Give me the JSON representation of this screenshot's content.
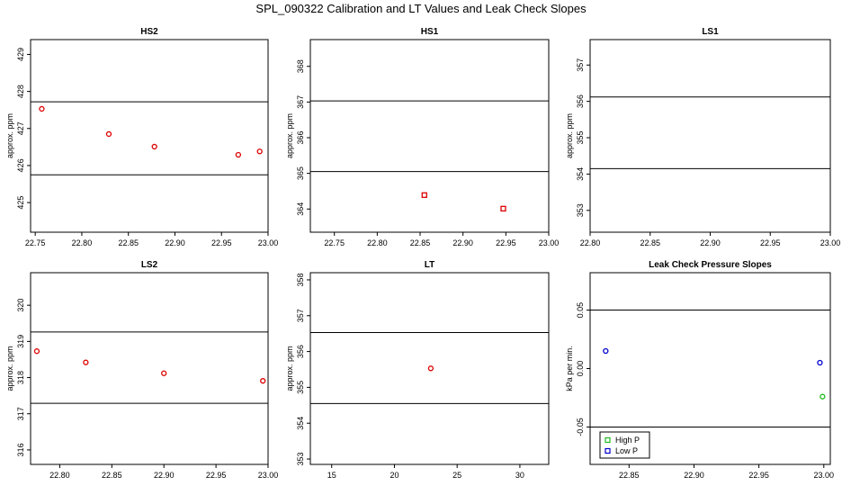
{
  "figure_title": "SPL_090322  Calibration and LT Values and Leak Check Slopes",
  "chart_data": [
    {
      "panel": "HS2",
      "type": "scatter",
      "title": "HS2",
      "ylabel": "approx. ppm",
      "xlim": [
        22.745,
        23.0
      ],
      "ylim": [
        424.2,
        429.4
      ],
      "xticks": [
        22.75,
        22.8,
        22.85,
        22.9,
        22.95,
        23.0
      ],
      "xtick_labels": [
        "22.75",
        "22.80",
        "22.85",
        "22.90",
        "22.95",
        "23.00"
      ],
      "yticks": [
        425,
        426,
        427,
        428,
        429
      ],
      "ytick_labels": [
        "425",
        "426",
        "427",
        "428",
        "429"
      ],
      "hlines": [
        425.75,
        427.72
      ],
      "series": [
        {
          "name": "values",
          "marker": "circle",
          "color": "#dd0000",
          "x": [
            22.757,
            22.829,
            22.878,
            22.968,
            22.991
          ],
          "y": [
            427.53,
            426.85,
            426.51,
            426.29,
            426.38
          ]
        }
      ]
    },
    {
      "panel": "HS1",
      "type": "scatter",
      "title": "HS1",
      "ylabel": "approx. ppm",
      "xlim": [
        22.722,
        23.0
      ],
      "ylim": [
        363.35,
        368.75
      ],
      "xticks": [
        22.75,
        22.8,
        22.85,
        22.9,
        22.95,
        23.0
      ],
      "xtick_labels": [
        "22.75",
        "22.80",
        "22.85",
        "22.90",
        "22.95",
        "23.00"
      ],
      "yticks": [
        364,
        365,
        366,
        367,
        368
      ],
      "ytick_labels": [
        "364",
        "365",
        "366",
        "367",
        "368"
      ],
      "hlines": [
        365.05,
        367.03
      ],
      "series": [
        {
          "name": "values",
          "marker": "square",
          "color": "#dd0000",
          "x": [
            22.855,
            22.947
          ],
          "y": [
            364.39,
            364.01
          ]
        }
      ]
    },
    {
      "panel": "LS1",
      "type": "scatter",
      "title": "LS1",
      "ylabel": "approx. ppm",
      "xlim": [
        22.8,
        23.0
      ],
      "ylim": [
        352.4,
        357.7
      ],
      "xticks": [
        22.8,
        22.85,
        22.9,
        22.95,
        23.0
      ],
      "xtick_labels": [
        "22.80",
        "22.85",
        "22.90",
        "22.95",
        "23.00"
      ],
      "yticks": [
        353,
        354,
        355,
        356,
        357
      ],
      "ytick_labels": [
        "353",
        "354",
        "355",
        "356",
        "357"
      ],
      "hlines": [
        354.15,
        356.12
      ],
      "series": []
    },
    {
      "panel": "LS2",
      "type": "scatter",
      "title": "LS2",
      "ylabel": "approx. ppm",
      "xlim": [
        22.772,
        23.0
      ],
      "ylim": [
        315.6,
        320.9
      ],
      "xticks": [
        22.8,
        22.85,
        22.9,
        22.95,
        23.0
      ],
      "xtick_labels": [
        "22.80",
        "22.85",
        "22.90",
        "22.95",
        "23.00"
      ],
      "yticks": [
        316,
        317,
        318,
        319,
        320
      ],
      "ytick_labels": [
        "316",
        "317",
        "318",
        "319",
        "320"
      ],
      "hlines": [
        317.29,
        319.26
      ],
      "series": [
        {
          "name": "values",
          "marker": "circle",
          "color": "#dd0000",
          "x": [
            22.778,
            22.825,
            22.9,
            22.995
          ],
          "y": [
            318.73,
            318.42,
            318.12,
            317.91
          ]
        }
      ]
    },
    {
      "panel": "LT",
      "type": "scatter",
      "title": "LT",
      "ylabel": "approx. ppm",
      "xlim": [
        13.3,
        32.3
      ],
      "ylim": [
        352.85,
        358.2
      ],
      "xticks": [
        15,
        20,
        25,
        30
      ],
      "xtick_labels": [
        "15",
        "20",
        "25",
        "30"
      ],
      "yticks": [
        353,
        354,
        355,
        356,
        357,
        358
      ],
      "ytick_labels": [
        "353",
        "354",
        "355",
        "356",
        "357",
        "358"
      ],
      "hlines": [
        354.55,
        356.53
      ],
      "series": [
        {
          "name": "values",
          "marker": "circle",
          "color": "#dd0000",
          "x": [
            22.9
          ],
          "y": [
            355.53
          ]
        }
      ]
    },
    {
      "panel": "Leak",
      "type": "scatter",
      "title": "Leak Check Pressure Slopes",
      "ylabel": "kPa per min.",
      "xlim": [
        22.82,
        23.005
      ],
      "ylim": [
        -0.082,
        0.082
      ],
      "xticks": [
        22.85,
        22.9,
        22.95,
        23.0
      ],
      "xtick_labels": [
        "22.85",
        "22.90",
        "22.95",
        "23.00"
      ],
      "yticks": [
        -0.05,
        0.0,
        0.05
      ],
      "ytick_labels": [
        "-0.05",
        "0.00",
        "0.05"
      ],
      "hlines": [
        -0.05,
        0.05
      ],
      "series": [
        {
          "name": "High P",
          "marker": "circle",
          "color": "#22bb22",
          "x": [
            22.999
          ],
          "y": [
            -0.024
          ]
        },
        {
          "name": "Low P",
          "marker": "circle",
          "color": "#0000cc",
          "x": [
            22.832,
            22.997
          ],
          "y": [
            0.015,
            0.005
          ]
        }
      ],
      "legend": {
        "position": "bottom-left",
        "entries": [
          {
            "label": "High P",
            "color": "#22bb22"
          },
          {
            "label": "Low P",
            "color": "#0000cc"
          }
        ]
      }
    }
  ]
}
